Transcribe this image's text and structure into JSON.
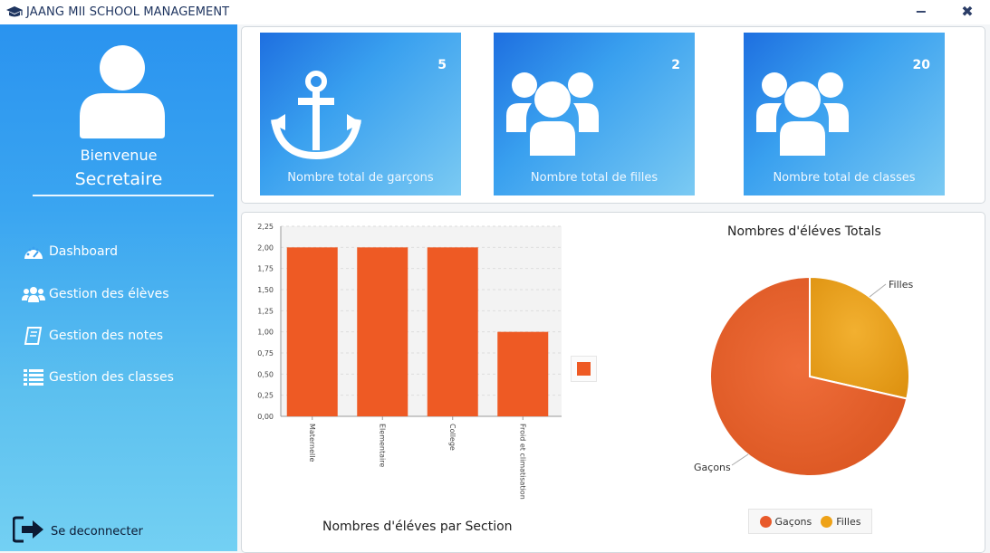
{
  "window": {
    "title": "JAANG MII SCHOOL MANAGEMENT",
    "minimize": "−",
    "close": "✖"
  },
  "sidebar": {
    "welcome": "Bienvenue",
    "user": "Secretaire",
    "items": [
      {
        "label": "Dashboard",
        "icon": "dashboard-icon"
      },
      {
        "label": "Gestion des élèves",
        "icon": "students-icon"
      },
      {
        "label": "Gestion des notes",
        "icon": "notebook-icon"
      },
      {
        "label": "Gestion des classes",
        "icon": "list-icon"
      }
    ],
    "logout": "Se deconnecter"
  },
  "cards": [
    {
      "count": "5",
      "label": "Nombre total de garçons",
      "icon": "anchor-icon"
    },
    {
      "count": "2",
      "label": "Nombre total de filles",
      "icon": "group-icon"
    },
    {
      "count": "20",
      "label": "Nombre total de classes",
      "icon": "group-icon"
    }
  ],
  "colors": {
    "bar": "#ee5a24",
    "garcons": "#e8592a",
    "filles": "#eea218",
    "sidebar_top": "#2a93ef",
    "sidebar_bottom": "#73d0f3"
  },
  "chart_data": [
    {
      "type": "bar",
      "title": "Nombres d'éléves par Section",
      "categories": [
        "Maternelle",
        "Elementaire",
        "College",
        "Froid et climatisation"
      ],
      "values": [
        2,
        2,
        2,
        1
      ],
      "ylim": [
        0,
        2.25
      ],
      "yticks": [
        "0,00",
        "0,25",
        "0,50",
        "0,75",
        "1,00",
        "1,25",
        "1,50",
        "1,75",
        "2,00",
        "2,25"
      ],
      "grid": true,
      "legend": "right"
    },
    {
      "type": "pie",
      "title": "Nombres d'éléves Totals",
      "labels": [
        "Gaçons",
        "Filles"
      ],
      "values": [
        5,
        2
      ],
      "legend": "bottom"
    }
  ]
}
